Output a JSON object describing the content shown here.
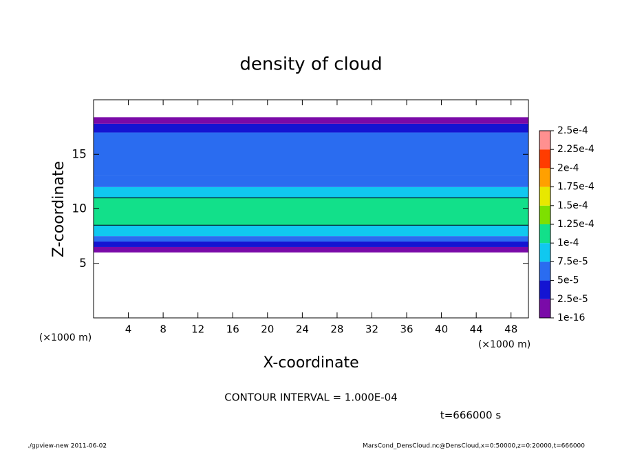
{
  "chart_data": {
    "type": "contour",
    "title": "density of cloud",
    "xlabel": "X-coordinate",
    "ylabel": "Z-coordinate",
    "x_unit": "(×1000 m)",
    "y_unit": "(×1000 m)",
    "xlim": [
      0,
      50
    ],
    "ylim": [
      0,
      20
    ],
    "xticks": [
      4,
      8,
      12,
      16,
      20,
      24,
      28,
      32,
      36,
      40,
      44,
      48
    ],
    "yticks": [
      5,
      10,
      15
    ],
    "z_bins": [
      6,
      6.5,
      7,
      7.5,
      8.5,
      11,
      12,
      13,
      17,
      17.8,
      18.4
    ],
    "values": [
      1e-05,
      3e-05,
      6e-05,
      9e-05,
      0.00011,
      9e-05,
      6.5e-05,
      5.5e-05,
      3.5e-05,
      1e-05
    ],
    "contour_interval": 0.0001,
    "levels": [
      {
        "value": 1e-16,
        "label": "1e-16"
      },
      {
        "value": 2.5e-05,
        "label": "2.5e-5"
      },
      {
        "value": 5e-05,
        "label": "5e-5"
      },
      {
        "value": 7.5e-05,
        "label": "7.5e-5"
      },
      {
        "value": 0.0001,
        "label": "1e-4"
      },
      {
        "value": 0.000125,
        "label": "1.25e-4"
      },
      {
        "value": 0.00015,
        "label": "1.5e-4"
      },
      {
        "value": 0.000175,
        "label": "1.75e-4"
      },
      {
        "value": 0.0002,
        "label": "2e-4"
      },
      {
        "value": 0.000225,
        "label": "2.25e-4"
      },
      {
        "value": 0.00025,
        "label": "2.5e-4"
      }
    ],
    "colors": [
      "#7a0aa8",
      "#1414d2",
      "#2a6cf0",
      "#10c8f0",
      "#12e08a",
      "#7ee000",
      "#e8e800",
      "#ffa000",
      "#ff3c00",
      "#ff9090"
    ],
    "annotations": [
      "CONTOUR INTERVAL = 1.000E-04",
      "t=666000 s"
    ],
    "footer_left": "./gpview-new  2011-06-02",
    "footer_right": "MarsCond_DensCloud.nc@DensCloud,x=0:50000,z=0:20000,t=666000"
  }
}
